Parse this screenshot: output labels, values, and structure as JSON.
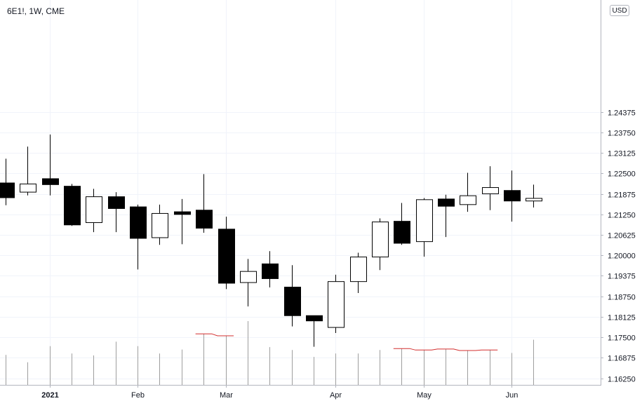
{
  "header": {
    "symbol": "6E1!, 1W, CME",
    "currency": "USD"
  },
  "chart_data": {
    "type": "candlestick",
    "title": "6E1!, 1W, CME",
    "ylim": [
      1.1625,
      1.2475
    ],
    "y_ticks": [
      "1.24375",
      "1.23750",
      "1.23125",
      "1.22500",
      "1.21875",
      "1.21250",
      "1.20625",
      "1.20000",
      "1.19375",
      "1.18750",
      "1.18125",
      "1.17500",
      "1.16875",
      "1.16250"
    ],
    "x_ticks": [
      {
        "label": "2021",
        "index": 2
      },
      {
        "label": "Feb",
        "index": 6
      },
      {
        "label": "Mar",
        "index": 10
      },
      {
        "label": "Apr",
        "index": 15
      },
      {
        "label": "May",
        "index": 19
      },
      {
        "label": "Jun",
        "index": 23
      }
    ],
    "up_color": "#ffffff",
    "down_color": "#000000",
    "wick_color": "#000000",
    "volume_color": "#9e9e9e",
    "volume_highlight_color": "#d32f2f",
    "candles": [
      {
        "o": 1.2221,
        "h": 1.2295,
        "l": 1.2153,
        "c": 1.2176
      },
      {
        "o": 1.2193,
        "h": 1.2332,
        "l": 1.2183,
        "c": 1.2218
      },
      {
        "o": 1.2234,
        "h": 1.2369,
        "l": 1.2183,
        "c": 1.2216
      },
      {
        "o": 1.2211,
        "h": 1.2218,
        "l": 1.209,
        "c": 1.2093
      },
      {
        "o": 1.21,
        "h": 1.2203,
        "l": 1.2071,
        "c": 1.2179
      },
      {
        "o": 1.2179,
        "h": 1.2193,
        "l": 1.2071,
        "c": 1.2143
      },
      {
        "o": 1.2148,
        "h": 1.2155,
        "l": 1.1957,
        "c": 1.2052
      },
      {
        "o": 1.2054,
        "h": 1.2155,
        "l": 1.2032,
        "c": 1.2128
      },
      {
        "o": 1.2133,
        "h": 1.2172,
        "l": 1.2034,
        "c": 1.2125
      },
      {
        "o": 1.2138,
        "h": 1.2248,
        "l": 1.2069,
        "c": 1.2083
      },
      {
        "o": 1.208,
        "h": 1.2118,
        "l": 1.1897,
        "c": 1.1915
      },
      {
        "o": 1.1917,
        "h": 1.1989,
        "l": 1.1844,
        "c": 1.1951
      },
      {
        "o": 1.1974,
        "h": 1.2013,
        "l": 1.1902,
        "c": 1.1929
      },
      {
        "o": 1.1903,
        "h": 1.197,
        "l": 1.1783,
        "c": 1.1816
      },
      {
        "o": 1.1816,
        "h": 1.1816,
        "l": 1.1721,
        "c": 1.18
      },
      {
        "o": 1.178,
        "h": 1.1941,
        "l": 1.1763,
        "c": 1.192
      },
      {
        "o": 1.192,
        "h": 1.2008,
        "l": 1.1885,
        "c": 1.1995
      },
      {
        "o": 1.1995,
        "h": 1.2113,
        "l": 1.1955,
        "c": 1.2102
      },
      {
        "o": 1.2104,
        "h": 1.216,
        "l": 1.2032,
        "c": 1.2037
      },
      {
        "o": 1.2042,
        "h": 1.2175,
        "l": 1.1996,
        "c": 1.217
      },
      {
        "o": 1.2172,
        "h": 1.2185,
        "l": 1.2056,
        "c": 1.215
      },
      {
        "o": 1.2155,
        "h": 1.2252,
        "l": 1.2133,
        "c": 1.2182
      },
      {
        "o": 1.2188,
        "h": 1.2272,
        "l": 1.2138,
        "c": 1.2207
      },
      {
        "o": 1.2198,
        "h": 1.2259,
        "l": 1.2103,
        "c": 1.2166
      },
      {
        "o": 1.2166,
        "h": 1.2216,
        "l": 1.2146,
        "c": 1.2174
      }
    ],
    "volumes": [
      0.61,
      0.46,
      0.79,
      0.64,
      0.6,
      0.88,
      0.79,
      0.64,
      0.72,
      1.04,
      1.0,
      1.3,
      0.77,
      0.71,
      0.57,
      0.64,
      0.64,
      0.71,
      0.74,
      0.71,
      0.73,
      0.7,
      0.71,
      0.65,
      0.92
    ],
    "volume_red_line": [
      {
        "from": 9,
        "to": 10
      },
      {
        "from": 18,
        "to": 22
      }
    ]
  }
}
